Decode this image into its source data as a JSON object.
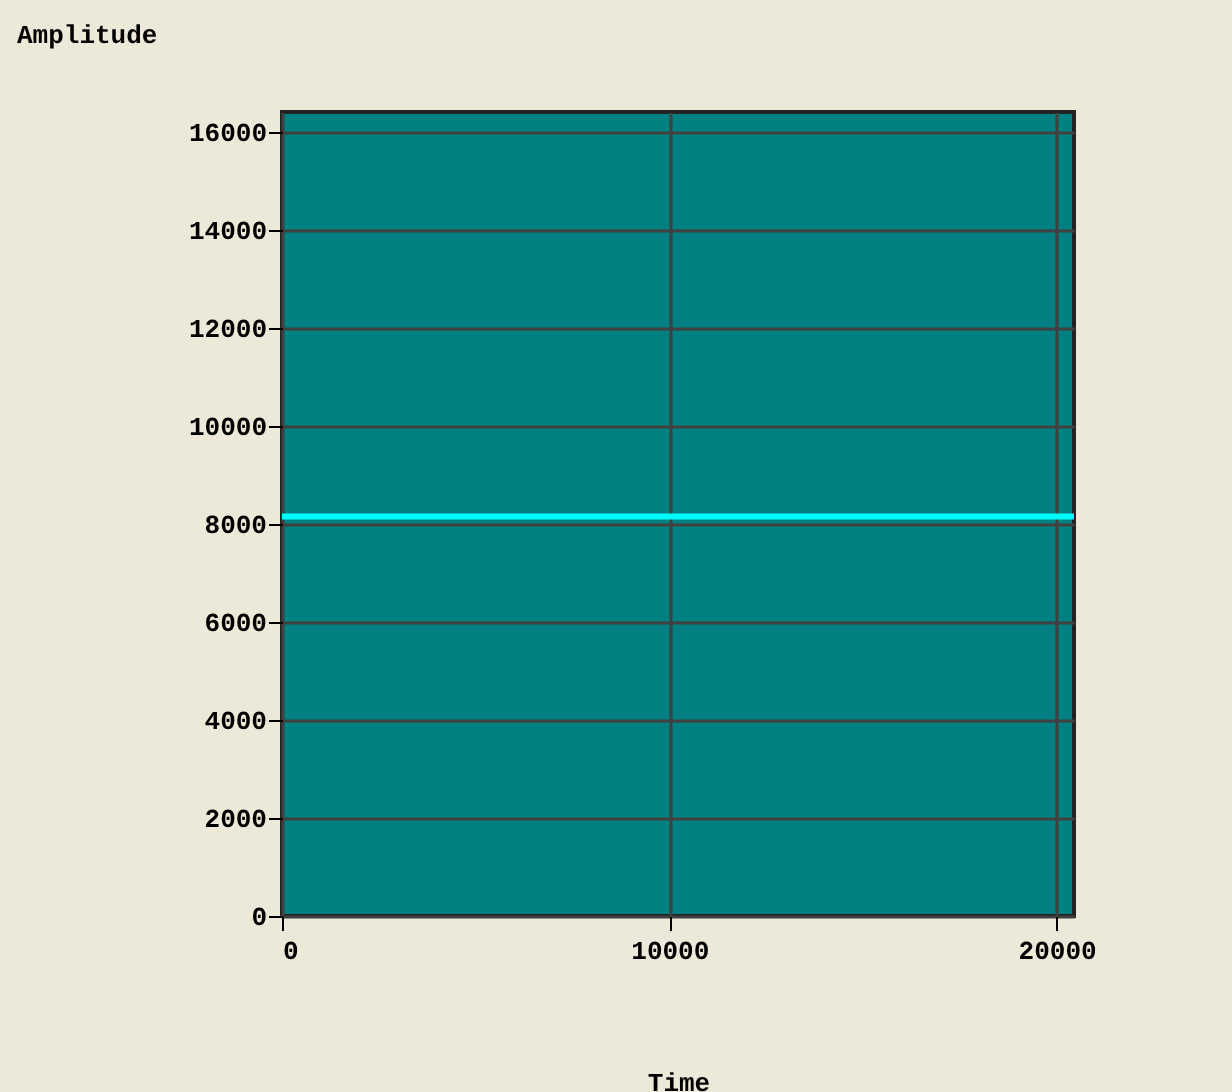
{
  "chart_data": {
    "type": "line",
    "xlabel": "Time",
    "ylabel": "Amplitude",
    "x": [
      0,
      20450
    ],
    "series": [
      {
        "color": "#00ffff",
        "values": [
          8150,
          8150
        ]
      }
    ],
    "xlim": [
      0,
      20450
    ],
    "ylim": [
      0,
      16400
    ],
    "xticks": [
      0,
      10000,
      20000
    ],
    "yticks": [
      0,
      2000,
      4000,
      6000,
      8000,
      10000,
      12000,
      14000,
      16000
    ],
    "grid": true,
    "legend": false,
    "marker": "none",
    "line_style": "solid"
  }
}
